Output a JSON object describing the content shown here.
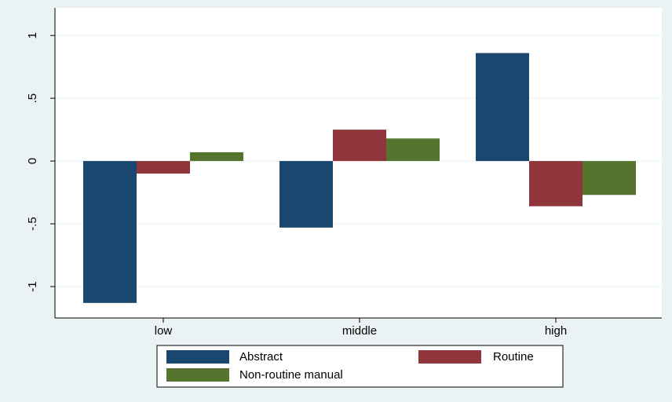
{
  "chart_data": {
    "type": "bar",
    "categories": [
      "low",
      "middle",
      "high"
    ],
    "series": [
      {
        "name": "Abstract",
        "color": "#1a476f",
        "values": [
          -1.13,
          -0.53,
          0.86
        ]
      },
      {
        "name": "Routine",
        "color": "#90353b",
        "values": [
          -0.1,
          0.25,
          -0.36
        ]
      },
      {
        "name": "Non-routine manual",
        "color": "#55752f",
        "values": [
          0.07,
          0.18,
          -0.27
        ]
      }
    ],
    "ylim": [
      -1.25,
      1.22
    ],
    "yticks": [
      -1,
      {
        "value": -0.5,
        "label": "-.5"
      },
      0,
      {
        "value": 0.5,
        "label": ".5"
      },
      1
    ],
    "grid": true,
    "legend": "bottom"
  }
}
